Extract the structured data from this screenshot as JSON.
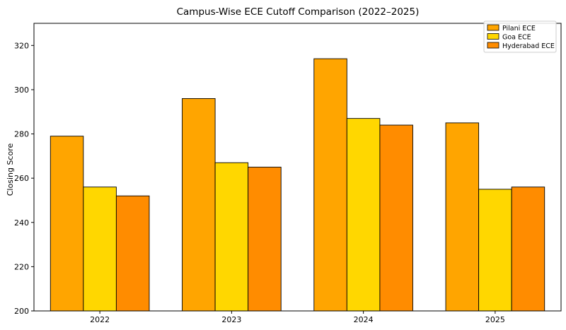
{
  "chart_data": {
    "type": "bar",
    "title": "Campus-Wise ECE Cutoff Comparison (2022–2025)",
    "xlabel": "",
    "ylabel": "Closing Score",
    "categories": [
      "2022",
      "2023",
      "2024",
      "2025"
    ],
    "ylim": [
      200,
      330
    ],
    "yticks": [
      200,
      220,
      240,
      260,
      280,
      300,
      320
    ],
    "grid": false,
    "legend_position": "top-right",
    "series": [
      {
        "name": "Pilani ECE",
        "color": "#FFA500",
        "values": [
          279,
          296,
          314,
          285
        ]
      },
      {
        "name": "Goa ECE",
        "color": "#FFD700",
        "values": [
          256,
          267,
          287,
          255
        ]
      },
      {
        "name": "Hyderabad ECE",
        "color": "#FF8C00",
        "values": [
          252,
          265,
          284,
          256
        ]
      }
    ]
  }
}
